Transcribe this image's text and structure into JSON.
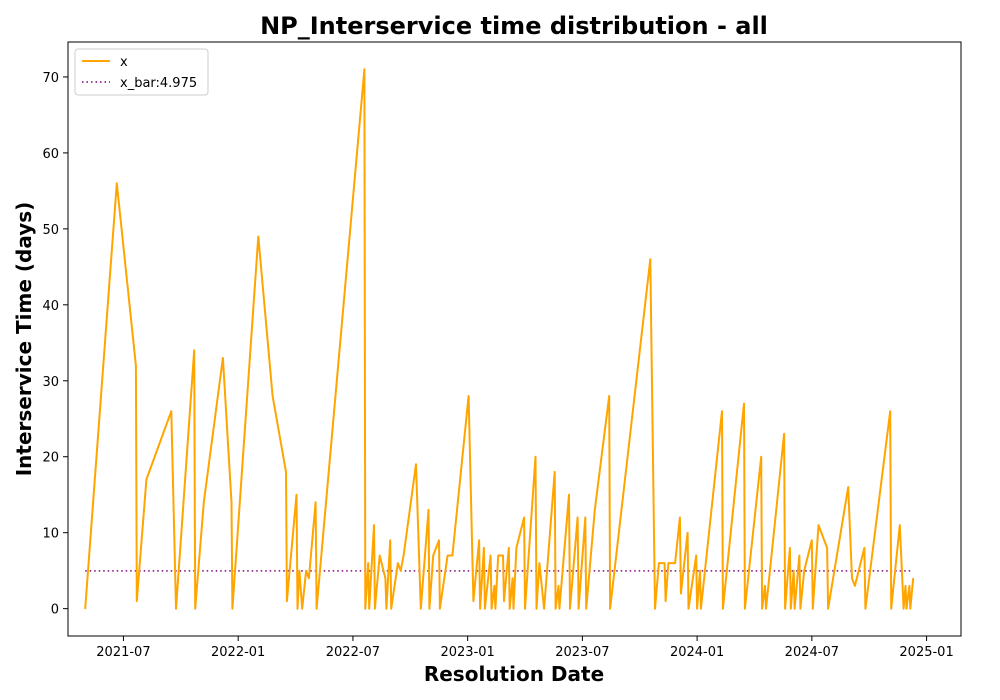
{
  "chart_data": {
    "type": "line",
    "title": "NP_Interservice time distribution - all",
    "xlabel": "Resolution Date",
    "ylabel": "Interservice Time (days)",
    "x_tick_labels": [
      "2021-07",
      "2022-01",
      "2022-07",
      "2023-01",
      "2023-07",
      "2024-01",
      "2024-07",
      "2025-01"
    ],
    "y_ticks": [
      0,
      10,
      20,
      30,
      40,
      50,
      60,
      70
    ],
    "xlim_months": [
      -2.9,
      43.8
    ],
    "ylim": [
      -3.6,
      74.6
    ],
    "legend": {
      "position": "top-left",
      "entries": [
        {
          "label": "x",
          "style": "solid",
          "color": "#ffa500"
        },
        {
          "label": "x_bar:4.975",
          "style": "dotted",
          "color": "#800080"
        }
      ]
    },
    "series": [
      {
        "name": "x",
        "color": "#ffa500",
        "points": [
          [
            -2.0,
            0
          ],
          [
            -0.35,
            56
          ],
          [
            0.65,
            32
          ],
          [
            0.7,
            1
          ],
          [
            1.2,
            17
          ],
          [
            2.5,
            26
          ],
          [
            2.75,
            0
          ],
          [
            3.7,
            34
          ],
          [
            3.75,
            0
          ],
          [
            4.2,
            14
          ],
          [
            5.2,
            33
          ],
          [
            5.65,
            14
          ],
          [
            5.7,
            0
          ],
          [
            7.05,
            49
          ],
          [
            7.8,
            28
          ],
          [
            8.5,
            18
          ],
          [
            8.55,
            1
          ],
          [
            9.05,
            15
          ],
          [
            9.1,
            0
          ],
          [
            9.2,
            5
          ],
          [
            9.35,
            0
          ],
          [
            9.55,
            5
          ],
          [
            9.7,
            4
          ],
          [
            10.05,
            14
          ],
          [
            10.1,
            0
          ],
          [
            12.6,
            71
          ],
          [
            12.65,
            0
          ],
          [
            12.8,
            6
          ],
          [
            12.85,
            0
          ],
          [
            13.1,
            11
          ],
          [
            13.15,
            0
          ],
          [
            13.4,
            7
          ],
          [
            13.7,
            4
          ],
          [
            13.75,
            0
          ],
          [
            13.95,
            9
          ],
          [
            14.0,
            0
          ],
          [
            14.35,
            6
          ],
          [
            14.5,
            5
          ],
          [
            14.65,
            7
          ],
          [
            15.3,
            19
          ],
          [
            15.55,
            0
          ],
          [
            15.95,
            13
          ],
          [
            16.0,
            0
          ],
          [
            16.2,
            7
          ],
          [
            16.5,
            9
          ],
          [
            16.55,
            0
          ],
          [
            16.95,
            7
          ],
          [
            17.2,
            7
          ],
          [
            18.05,
            28
          ],
          [
            18.3,
            1
          ],
          [
            18.6,
            9
          ],
          [
            18.65,
            0
          ],
          [
            18.85,
            8
          ],
          [
            18.9,
            0
          ],
          [
            19.2,
            7
          ],
          [
            19.25,
            0
          ],
          [
            19.4,
            3
          ],
          [
            19.45,
            0
          ],
          [
            19.6,
            7
          ],
          [
            19.85,
            7
          ],
          [
            19.9,
            1
          ],
          [
            20.15,
            8
          ],
          [
            20.2,
            0
          ],
          [
            20.35,
            4
          ],
          [
            20.4,
            0
          ],
          [
            20.55,
            8
          ],
          [
            20.95,
            12
          ],
          [
            21.0,
            0
          ],
          [
            21.55,
            20
          ],
          [
            21.6,
            0
          ],
          [
            21.75,
            6
          ],
          [
            22.0,
            0
          ],
          [
            22.55,
            18
          ],
          [
            22.6,
            0
          ],
          [
            22.75,
            3
          ],
          [
            22.8,
            0
          ],
          [
            23.3,
            15
          ],
          [
            23.35,
            0
          ],
          [
            23.75,
            12
          ],
          [
            23.8,
            0
          ],
          [
            24.15,
            12
          ],
          [
            24.2,
            0
          ],
          [
            24.65,
            13
          ],
          [
            25.4,
            28
          ],
          [
            25.45,
            0
          ],
          [
            27.55,
            46
          ],
          [
            27.8,
            0
          ],
          [
            28.0,
            6
          ],
          [
            28.3,
            6
          ],
          [
            28.35,
            1
          ],
          [
            28.5,
            6
          ],
          [
            28.85,
            6
          ],
          [
            29.1,
            12
          ],
          [
            29.15,
            2
          ],
          [
            29.5,
            10
          ],
          [
            29.55,
            0
          ],
          [
            29.95,
            7
          ],
          [
            30.0,
            0
          ],
          [
            30.15,
            5
          ],
          [
            30.2,
            0
          ],
          [
            31.3,
            26
          ],
          [
            31.35,
            0
          ],
          [
            32.45,
            27
          ],
          [
            32.5,
            0
          ],
          [
            33.35,
            20
          ],
          [
            33.4,
            0
          ],
          [
            33.55,
            3
          ],
          [
            33.6,
            0
          ],
          [
            34.55,
            23
          ],
          [
            34.6,
            0
          ],
          [
            34.85,
            8
          ],
          [
            34.9,
            0
          ],
          [
            35.05,
            5
          ],
          [
            35.1,
            0
          ],
          [
            35.35,
            7
          ],
          [
            35.4,
            0
          ],
          [
            35.6,
            5
          ],
          [
            36.0,
            9
          ],
          [
            36.05,
            0
          ],
          [
            36.35,
            11
          ],
          [
            36.8,
            8
          ],
          [
            36.85,
            0
          ],
          [
            37.9,
            16
          ],
          [
            38.1,
            4
          ],
          [
            38.25,
            3
          ],
          [
            38.75,
            8
          ],
          [
            38.8,
            0
          ],
          [
            40.1,
            26
          ],
          [
            40.15,
            0
          ],
          [
            40.6,
            11
          ],
          [
            40.8,
            0
          ],
          [
            40.9,
            3
          ],
          [
            40.95,
            0
          ],
          [
            41.1,
            3
          ],
          [
            41.15,
            0
          ],
          [
            41.3,
            4
          ]
        ]
      },
      {
        "name": "x_bar:4.975",
        "color": "#800080",
        "constant": 4.975,
        "x_range": [
          -2.0,
          41.3
        ]
      }
    ]
  }
}
